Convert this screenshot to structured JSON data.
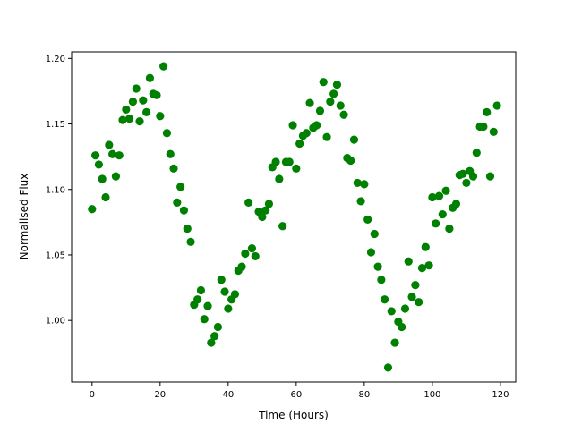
{
  "chart_data": {
    "type": "scatter",
    "title": "",
    "xlabel": "Time (Hours)",
    "ylabel": "Normalised Flux",
    "xlim": [
      -6,
      124.5
    ],
    "ylim": [
      0.953,
      1.205
    ],
    "xticks": [
      0,
      20,
      40,
      60,
      80,
      100,
      120
    ],
    "xtick_labels": [
      "0",
      "20",
      "40",
      "60",
      "80",
      "100",
      "120"
    ],
    "yticks": [
      1.0,
      1.05,
      1.1,
      1.15,
      1.2
    ],
    "ytick_labels": [
      "1.00",
      "1.05",
      "1.10",
      "1.15",
      "1.20"
    ],
    "grid": false,
    "marker_color": "#008000",
    "series": [
      {
        "x": [
          0,
          1,
          2,
          3,
          4,
          5,
          6,
          7,
          8,
          9,
          10,
          11,
          12,
          13,
          14,
          15,
          16,
          17,
          18,
          19,
          20,
          21,
          22,
          23,
          24,
          25,
          26,
          27,
          28,
          29,
          30,
          31,
          32,
          33,
          34,
          35,
          36,
          37,
          38,
          39,
          40,
          41,
          42,
          43,
          44,
          45,
          46,
          47,
          48,
          49,
          50,
          51,
          52,
          53,
          54,
          55,
          56,
          57,
          58,
          59,
          60,
          61,
          62,
          63,
          64,
          65,
          66,
          67,
          68,
          69,
          70,
          71,
          72,
          73,
          74,
          75,
          76,
          77,
          78,
          79,
          80,
          81,
          82,
          83,
          84,
          85,
          86,
          87,
          88,
          89,
          90,
          91,
          92,
          93,
          94,
          95,
          96,
          97,
          98,
          99,
          100,
          101,
          102,
          103,
          104,
          105,
          106,
          107,
          108,
          109,
          110,
          111,
          112,
          113,
          114,
          115,
          116,
          117,
          118,
          119
        ],
        "y": [
          1.085,
          1.126,
          1.119,
          1.108,
          1.094,
          1.134,
          1.127,
          1.11,
          1.126,
          1.153,
          1.161,
          1.154,
          1.167,
          1.177,
          1.152,
          1.168,
          1.159,
          1.185,
          1.173,
          1.172,
          1.156,
          1.194,
          1.143,
          1.127,
          1.116,
          1.09,
          1.102,
          1.084,
          1.07,
          1.06,
          1.012,
          1.016,
          1.023,
          1.001,
          1.011,
          0.983,
          0.988,
          0.995,
          1.031,
          1.022,
          1.009,
          1.016,
          1.02,
          1.038,
          1.041,
          1.051,
          1.09,
          1.055,
          1.049,
          1.083,
          1.079,
          1.084,
          1.089,
          1.117,
          1.121,
          1.108,
          1.072,
          1.121,
          1.121,
          1.149,
          1.116,
          1.135,
          1.141,
          1.143,
          1.166,
          1.147,
          1.149,
          1.16,
          1.182,
          1.14,
          1.167,
          1.173,
          1.18,
          1.164,
          1.157,
          1.124,
          1.122,
          1.138,
          1.105,
          1.091,
          1.104,
          1.077,
          1.052,
          1.066,
          1.041,
          1.031,
          1.016,
          0.964,
          1.007,
          0.983,
          0.999,
          0.995,
          1.009,
          1.045,
          1.018,
          1.027,
          1.014,
          1.04,
          1.056,
          1.042,
          1.094,
          1.074,
          1.095,
          1.081,
          1.099,
          1.07,
          1.086,
          1.089,
          1.111,
          1.112,
          1.105,
          1.114,
          1.11,
          1.128,
          1.148,
          1.148,
          1.159,
          1.11,
          1.144,
          1.164
        ]
      }
    ]
  }
}
